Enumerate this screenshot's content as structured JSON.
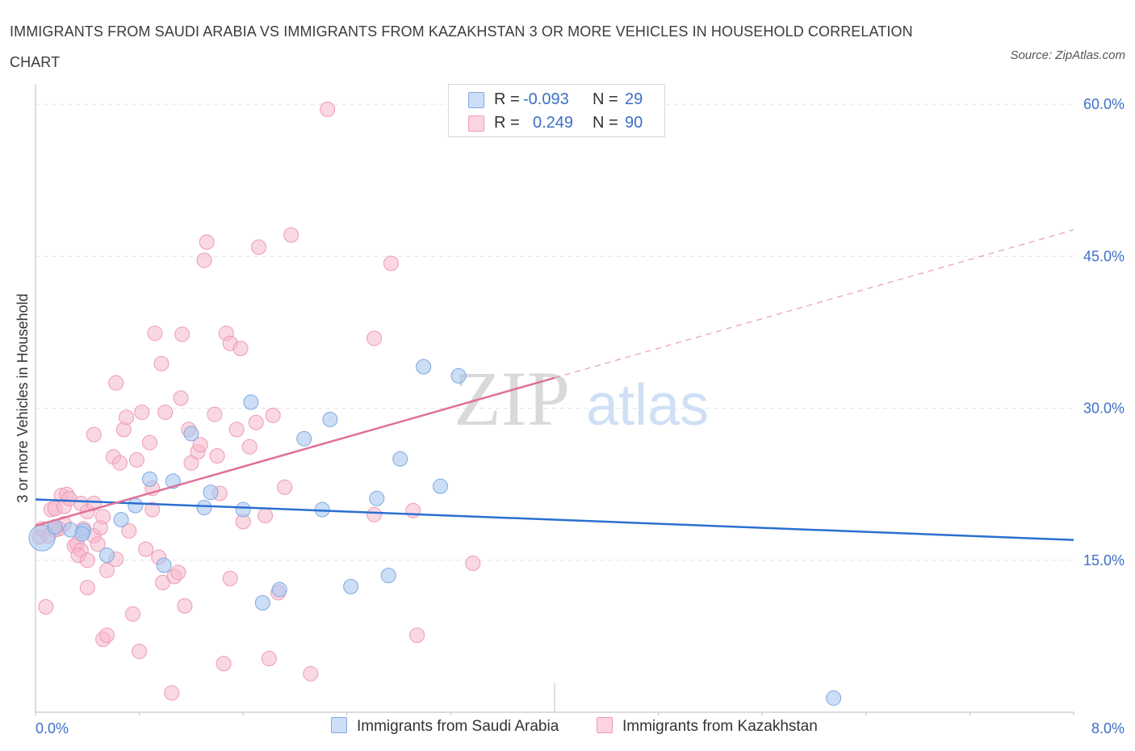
{
  "title": "IMMIGRANTS FROM SAUDI ARABIA VS IMMIGRANTS FROM KAZAKHSTAN 3 OR MORE VEHICLES IN HOUSEHOLD CORRELATION CHART",
  "source": "Source: ZipAtlas.com",
  "watermark": {
    "zip": "ZIP",
    "atlas": "atlas"
  },
  "legend": {
    "rows": [
      {
        "r_label": "R =",
        "r_value": "-0.093",
        "n_label": "N =",
        "n_value": "29",
        "color": "#a9c8f0"
      },
      {
        "r_label": "R =",
        "r_value": "0.249",
        "n_label": "N =",
        "n_value": "90",
        "color": "#f5b8cb"
      }
    ]
  },
  "bottom_legend": {
    "saudi": "Immigrants from Saudi Arabia",
    "kazakhstan": "Immigrants from Kazakhstan"
  },
  "chart_data": {
    "type": "scatter",
    "title": "IMMIGRANTS FROM SAUDI ARABIA VS IMMIGRANTS FROM KAZAKHSTAN 3 OR MORE VEHICLES IN HOUSEHOLD CORRELATION CHART",
    "xlabel": "",
    "ylabel": "3 or more Vehicles in Household",
    "xlim": [
      0,
      8
    ],
    "ylim": [
      0,
      62
    ],
    "x_tick_labels": [
      "0.0%",
      "8.0%"
    ],
    "y_ticks": [
      15,
      30,
      45,
      60
    ],
    "y_tick_labels": [
      "15.0%",
      "30.0%",
      "45.0%",
      "60.0%"
    ],
    "colors": {
      "saudi": "#a9c8f0",
      "saudi_line": "#2a6fd0",
      "kazakhstan": "#f5b8cb",
      "kazakhstan_line": "#e07098"
    },
    "series": [
      {
        "name": "Immigrants from Saudi Arabia",
        "R": -0.093,
        "N": 29,
        "trend": {
          "x0": 0,
          "y0": 21.0,
          "x1": 8,
          "y1": 17.0
        },
        "points": [
          [
            0.05,
            17.2
          ],
          [
            0.15,
            18.3
          ],
          [
            0.27,
            18.0
          ],
          [
            0.37,
            17.9
          ],
          [
            0.36,
            17.6
          ],
          [
            0.55,
            15.5
          ],
          [
            0.66,
            19.0
          ],
          [
            0.77,
            20.4
          ],
          [
            0.88,
            23.0
          ],
          [
            0.99,
            14.5
          ],
          [
            1.06,
            22.8
          ],
          [
            1.2,
            27.5
          ],
          [
            1.3,
            20.2
          ],
          [
            1.35,
            21.7
          ],
          [
            1.6,
            20.0
          ],
          [
            1.66,
            30.6
          ],
          [
            1.75,
            10.8
          ],
          [
            1.88,
            12.1
          ],
          [
            2.07,
            27.0
          ],
          [
            2.21,
            20.0
          ],
          [
            2.27,
            28.9
          ],
          [
            2.43,
            12.4
          ],
          [
            2.63,
            21.1
          ],
          [
            2.72,
            13.5
          ],
          [
            2.81,
            25.0
          ],
          [
            2.99,
            34.1
          ],
          [
            3.12,
            22.3
          ],
          [
            3.26,
            33.2
          ],
          [
            6.15,
            1.4
          ]
        ]
      },
      {
        "name": "Immigrants from Kazakhstan",
        "R": 0.249,
        "N": 90,
        "trend": {
          "x0": 0,
          "y0": 18.4,
          "x1": 4.0,
          "y1": 33.0,
          "dash_x1": 8,
          "dash_y1": 47.6
        },
        "points": [
          [
            0.03,
            17.3
          ],
          [
            0.05,
            18.1
          ],
          [
            0.08,
            10.4
          ],
          [
            0.1,
            17.4
          ],
          [
            0.12,
            20.0
          ],
          [
            0.15,
            20.1
          ],
          [
            0.18,
            18.1
          ],
          [
            0.2,
            21.4
          ],
          [
            0.22,
            20.3
          ],
          [
            0.22,
            18.6
          ],
          [
            0.24,
            21.5
          ],
          [
            0.26,
            21.1
          ],
          [
            0.3,
            16.4
          ],
          [
            0.32,
            16.6
          ],
          [
            0.35,
            16.0
          ],
          [
            0.35,
            20.6
          ],
          [
            0.37,
            18.1
          ],
          [
            0.33,
            15.5
          ],
          [
            0.4,
            19.8
          ],
          [
            0.4,
            15.0
          ],
          [
            0.45,
            27.4
          ],
          [
            0.45,
            20.6
          ],
          [
            0.45,
            17.4
          ],
          [
            0.4,
            12.3
          ],
          [
            0.48,
            16.6
          ],
          [
            0.5,
            18.2
          ],
          [
            0.52,
            19.3
          ],
          [
            0.55,
            14.0
          ],
          [
            0.52,
            7.2
          ],
          [
            0.55,
            7.6
          ],
          [
            0.6,
            25.2
          ],
          [
            0.62,
            15.1
          ],
          [
            0.62,
            32.5
          ],
          [
            0.65,
            24.6
          ],
          [
            0.68,
            27.9
          ],
          [
            0.7,
            29.1
          ],
          [
            0.72,
            17.9
          ],
          [
            0.75,
            9.7
          ],
          [
            0.78,
            24.9
          ],
          [
            0.8,
            6.0
          ],
          [
            0.82,
            29.6
          ],
          [
            0.85,
            16.1
          ],
          [
            0.88,
            26.6
          ],
          [
            0.9,
            20.0
          ],
          [
            0.9,
            22.1
          ],
          [
            0.92,
            37.4
          ],
          [
            0.95,
            15.3
          ],
          [
            0.97,
            34.4
          ],
          [
            0.98,
            12.8
          ],
          [
            1.0,
            29.6
          ],
          [
            1.05,
            1.9
          ],
          [
            1.07,
            13.4
          ],
          [
            1.1,
            13.8
          ],
          [
            1.12,
            31.0
          ],
          [
            1.13,
            37.3
          ],
          [
            1.15,
            10.5
          ],
          [
            1.18,
            27.9
          ],
          [
            1.2,
            24.6
          ],
          [
            1.25,
            25.7
          ],
          [
            1.27,
            26.4
          ],
          [
            1.3,
            44.6
          ],
          [
            1.32,
            46.4
          ],
          [
            1.38,
            29.4
          ],
          [
            1.4,
            25.3
          ],
          [
            1.42,
            21.6
          ],
          [
            1.45,
            4.8
          ],
          [
            1.47,
            37.4
          ],
          [
            1.5,
            36.4
          ],
          [
            1.5,
            13.2
          ],
          [
            1.55,
            27.9
          ],
          [
            1.58,
            35.9
          ],
          [
            1.6,
            18.8
          ],
          [
            1.65,
            26.2
          ],
          [
            1.7,
            28.6
          ],
          [
            1.72,
            45.9
          ],
          [
            1.77,
            19.4
          ],
          [
            1.8,
            5.3
          ],
          [
            1.83,
            29.3
          ],
          [
            1.87,
            11.8
          ],
          [
            1.92,
            22.2
          ],
          [
            1.97,
            47.1
          ],
          [
            2.12,
            3.8
          ],
          [
            2.25,
            59.5
          ],
          [
            2.61,
            19.5
          ],
          [
            2.61,
            36.9
          ],
          [
            2.74,
            44.3
          ],
          [
            2.91,
            19.9
          ],
          [
            2.94,
            7.6
          ],
          [
            3.37,
            14.7
          ],
          [
            0.15,
            18.0
          ]
        ]
      }
    ]
  }
}
